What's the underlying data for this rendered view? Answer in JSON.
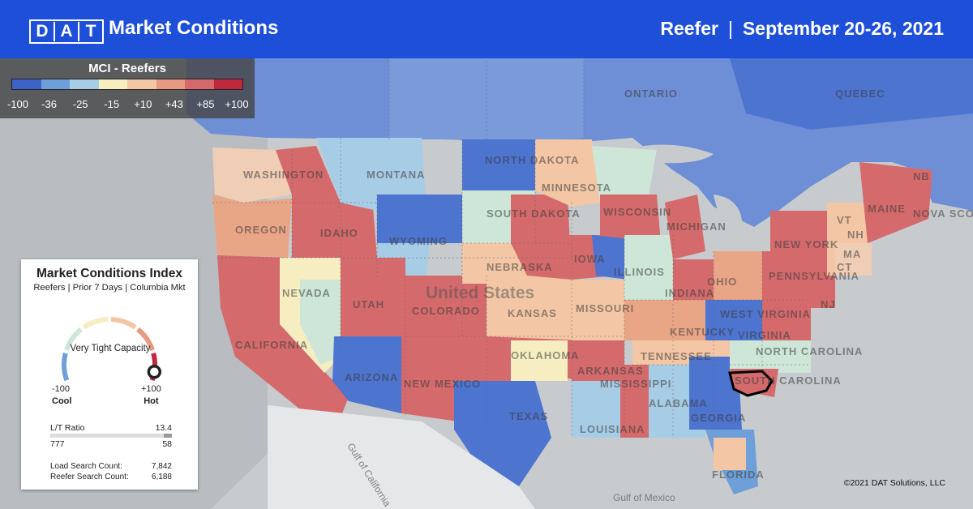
{
  "header": {
    "logo_letters": [
      "D",
      "A",
      "T"
    ],
    "title": "Market Conditions",
    "equipment": "Reefer",
    "separator": "|",
    "date_range": "September 20-26, 2021"
  },
  "legend": {
    "title": "MCI - Reefers",
    "ticks": [
      "-100",
      "-36",
      "-25",
      "-15",
      "+10",
      "+43",
      "+85",
      "+100"
    ],
    "colors": [
      "#3d63c9",
      "#6f9fd8",
      "#a7cce5",
      "#f6eec0",
      "#f3c7a5",
      "#e79a82",
      "#d56a6c",
      "#c0283d"
    ]
  },
  "index_card": {
    "title": "Market Conditions Index",
    "subtitle": "Reefers | Prior 7 Days | Columbia Mkt",
    "gauge_label": "Very Tight Capacity",
    "gauge_value_fraction": 0.95,
    "min_value": "-100",
    "min_label": "Cool",
    "max_value": "+100",
    "max_label": "Hot",
    "lt_ratio_label": "L/T Ratio",
    "lt_ratio_value": "13.4",
    "loads": "777",
    "trucks": "58",
    "load_search_label": "Load Search Count:",
    "load_search_value": "7,842",
    "reefer_search_label": "Reefer Search Count:",
    "reefer_search_value": "6,188"
  },
  "map": {
    "country_label": "United States",
    "canada_labels": [
      "ONTARIO",
      "QUEBEC",
      "NB",
      "NOVA SCO"
    ],
    "water_labels": [
      "Gulf of California",
      "Gulf of Mexico"
    ],
    "state_labels": [
      "WASHINGTON",
      "OREGON",
      "CALIFORNIA",
      "NEVADA",
      "IDAHO",
      "MONTANA",
      "WYOMING",
      "UTAH",
      "ARIZONA",
      "COLORADO",
      "NEW MEXICO",
      "NORTH DAKOTA",
      "SOUTH DAKOTA",
      "NEBRASKA",
      "KANSAS",
      "OKLAHOMA",
      "TEXAS",
      "MINNESOTA",
      "IOWA",
      "MISSOURI",
      "ARKANSAS",
      "LOUISIANA",
      "WISCONSIN",
      "ILLINOIS",
      "MICHIGAN",
      "INDIANA",
      "OHIO",
      "KENTUCKY",
      "TENNESSEE",
      "MISSISSIPPI",
      "ALABAMA",
      "GEORGIA",
      "FLORIDA",
      "SOUTH CAROLINA",
      "NORTH CAROLINA",
      "VIRGINIA",
      "WEST VIRGINIA",
      "PENNSYLVANIA",
      "NEW YORK",
      "NJ",
      "MAINE",
      "VT",
      "NH",
      "MA",
      "CT"
    ],
    "highlighted_market": "Columbia"
  },
  "copyright": "©2021 DAT Solutions, LLC"
}
